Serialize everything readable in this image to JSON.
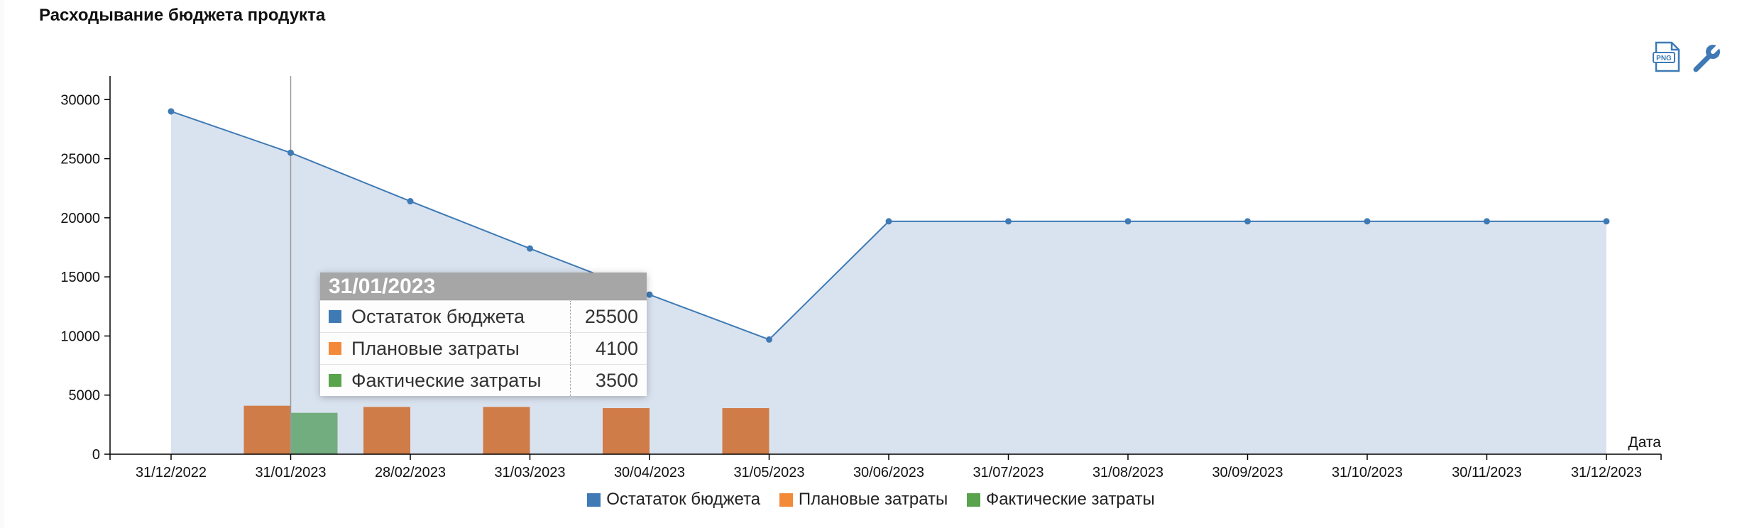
{
  "page": {
    "title": "Расходывание бюджета продукта"
  },
  "toolbar": {
    "png_icon": "png-export-icon",
    "wrench_icon": "wrench-icon"
  },
  "colors": {
    "remaining": "#3f7ab5",
    "planned": "#f28a3a",
    "actual": "#5aa34d",
    "area": "#d9e3ef"
  },
  "chart_data": {
    "type": "line",
    "title": "Расходывание бюджета продукта",
    "xlabel": "Дата",
    "ylabel": "",
    "ylim": [
      0,
      32000
    ],
    "yticks": [
      0,
      5000,
      10000,
      15000,
      20000,
      25000,
      30000
    ],
    "categories": [
      "31/12/2022",
      "31/01/2023",
      "28/02/2023",
      "31/03/2023",
      "30/04/2023",
      "31/05/2023",
      "30/06/2023",
      "31/07/2023",
      "31/08/2023",
      "30/09/2023",
      "31/10/2023",
      "30/11/2023",
      "31/12/2023"
    ],
    "series": [
      {
        "name": "Остататок бюджета",
        "kind": "area-line",
        "values": [
          29000,
          25500,
          21400,
          17400,
          13500,
          9700,
          19700,
          19700,
          19700,
          19700,
          19700,
          19700,
          19700
        ]
      },
      {
        "name": "Плановые затраты",
        "kind": "bar",
        "values": [
          null,
          4100,
          4000,
          4000,
          3900,
          3900,
          null,
          null,
          null,
          null,
          null,
          null,
          null
        ]
      },
      {
        "name": "Фактические затраты",
        "kind": "bar",
        "values": [
          null,
          3500,
          null,
          null,
          null,
          null,
          null,
          null,
          null,
          null,
          null,
          null,
          null
        ]
      }
    ],
    "grid": false,
    "legend": "bottom-center"
  },
  "tooltip": {
    "date": "31/01/2023",
    "rows": [
      {
        "name": "Остататок бюджета",
        "value": "25500"
      },
      {
        "name": "Плановые затраты",
        "value": "4100"
      },
      {
        "name": "Фактические затраты",
        "value": "3500"
      }
    ]
  }
}
